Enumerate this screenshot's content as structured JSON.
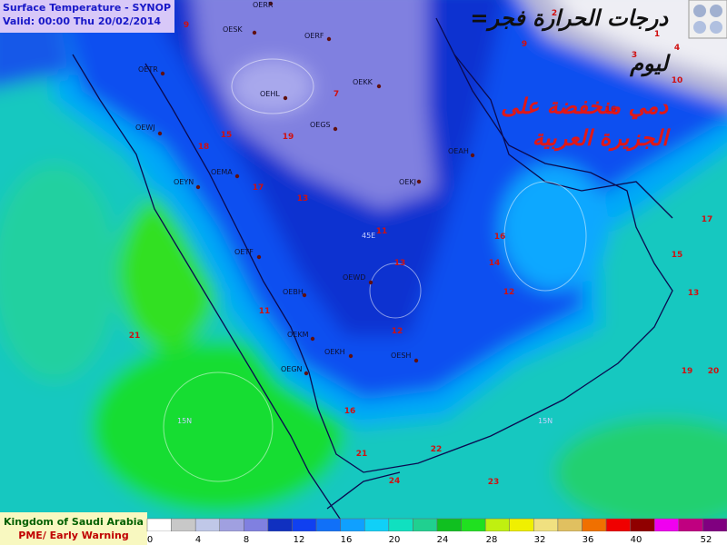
{
  "header": {
    "title": "Surface Temperature - SYNOP",
    "valid": "Valid: 00:00 Thu 20/02/2014"
  },
  "annotation": {
    "lines": [
      "=درجات الحرارة فجر",
      "ليوم",
      "دمي منخفضة على",
      "الجزيرة العربية"
    ]
  },
  "footer": {
    "organization": "Kingdom of Saudi Arabia",
    "department": "PME/ Early Warning"
  },
  "legend": {
    "labels": [
      0,
      4,
      8,
      12,
      16,
      20,
      24,
      28,
      32,
      36,
      40,
      52
    ]
  },
  "stations": [
    "OERR",
    "OESK",
    "OERF",
    "OEHL",
    "OEKK",
    "OEGS",
    "OEKJ",
    "OETR",
    "OEWJ",
    "OEMA",
    "OEYN",
    "OETF",
    "OEWD",
    "OEBH",
    "OEKM",
    "OEKH",
    "OESH",
    "OEGN",
    "OEAH"
  ],
  "temperatures": [
    9,
    2,
    1,
    4,
    3,
    9,
    10,
    7,
    16,
    18,
    15,
    19,
    17,
    13,
    11,
    16,
    14,
    17,
    15,
    13,
    12,
    13,
    12,
    11,
    21,
    19,
    20,
    16,
    21,
    22,
    24,
    23
  ],
  "grid_labels": [
    "45E",
    "15N",
    "15N"
  ]
}
